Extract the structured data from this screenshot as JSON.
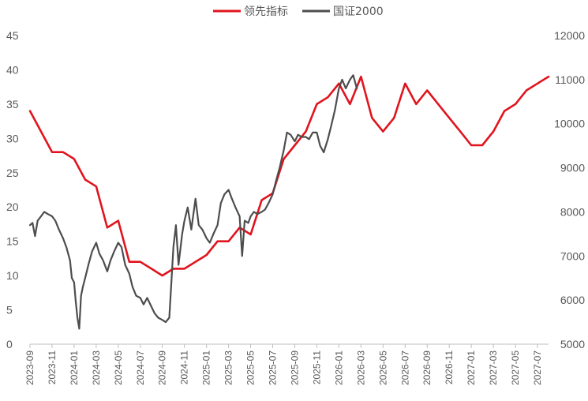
{
  "chart_data": {
    "type": "line",
    "legend": {
      "placement": "top-center",
      "items": [
        {
          "label": "领先指标",
          "color": "#e0141e"
        },
        {
          "label": "国证2000",
          "color": "#4d4d4d"
        }
      ]
    },
    "x_tick_labels": [
      "2023-09",
      "2023-11",
      "2024-01",
      "2024-03",
      "2024-05",
      "2024-07",
      "2024-09",
      "2024-11",
      "2025-01",
      "2025-03",
      "2025-05",
      "2025-07",
      "2025-09",
      "2025-11",
      "2026-01",
      "2026-03",
      "2026-05",
      "2026-07",
      "2026-09",
      "2026-11",
      "2027-01",
      "2027-03",
      "2027-05",
      "2027-07"
    ],
    "x_range": [
      "2023-09",
      "2027-08"
    ],
    "left_axis": {
      "min": 0,
      "max": 45,
      "step": 5,
      "ticks": [
        "0",
        "5",
        "10",
        "15",
        "20",
        "25",
        "30",
        "35",
        "40",
        "45"
      ]
    },
    "right_axis": {
      "min": 5000,
      "max": 12000,
      "step": 1000,
      "ticks": [
        "5000",
        "6000",
        "7000",
        "8000",
        "9000",
        "10000",
        "11000",
        "12000"
      ]
    },
    "grid": false,
    "series": [
      {
        "name": "领先指标",
        "axis": "left",
        "color": "#e0141e",
        "points": [
          [
            "2023-09",
            34
          ],
          [
            "2023-10",
            31
          ],
          [
            "2023-11",
            28
          ],
          [
            "2023-12",
            28
          ],
          [
            "2024-01",
            27
          ],
          [
            "2024-02",
            24
          ],
          [
            "2024-03",
            23
          ],
          [
            "2024-04",
            17
          ],
          [
            "2024-05",
            18
          ],
          [
            "2024-06",
            12
          ],
          [
            "2024-07",
            12
          ],
          [
            "2024-08",
            11
          ],
          [
            "2024-09",
            10
          ],
          [
            "2024-10",
            11
          ],
          [
            "2024-11",
            11
          ],
          [
            "2024-12",
            12
          ],
          [
            "2025-01",
            13
          ],
          [
            "2025-02",
            15
          ],
          [
            "2025-03",
            15
          ],
          [
            "2025-04",
            17
          ],
          [
            "2025-05",
            16
          ],
          [
            "2025-06",
            21
          ],
          [
            "2025-07",
            22
          ],
          [
            "2025-08",
            27
          ],
          [
            "2025-09",
            29
          ],
          [
            "2025-10",
            31
          ],
          [
            "2025-11",
            35
          ],
          [
            "2025-12",
            36
          ],
          [
            "2026-01",
            38
          ],
          [
            "2026-02",
            35
          ],
          [
            "2026-03",
            39
          ],
          [
            "2026-04",
            33
          ],
          [
            "2026-05",
            31
          ],
          [
            "2026-06",
            33
          ],
          [
            "2026-07",
            38
          ],
          [
            "2026-08",
            35
          ],
          [
            "2026-09",
            37
          ],
          [
            "2026-10",
            35
          ],
          [
            "2026-11",
            33
          ],
          [
            "2026-12",
            31
          ],
          [
            "2027-01",
            29
          ],
          [
            "2027-02",
            29
          ],
          [
            "2027-03",
            31
          ],
          [
            "2027-04",
            34
          ],
          [
            "2027-05",
            35
          ],
          [
            "2027-06",
            37
          ],
          [
            "2027-07",
            38
          ],
          [
            "2027-08",
            39
          ]
        ]
      },
      {
        "name": "国证2000",
        "axis": "right",
        "color": "#4d4d4d",
        "points": [
          [
            "2023-09-01",
            7700
          ],
          [
            "2023-09-08",
            7750
          ],
          [
            "2023-09-15",
            7450
          ],
          [
            "2023-09-22",
            7800
          ],
          [
            "2023-10-01",
            7900
          ],
          [
            "2023-10-10",
            8000
          ],
          [
            "2023-10-20",
            7950
          ],
          [
            "2023-11-01",
            7900
          ],
          [
            "2023-11-10",
            7800
          ],
          [
            "2023-11-20",
            7600
          ],
          [
            "2023-12-01",
            7400
          ],
          [
            "2023-12-10",
            7200
          ],
          [
            "2023-12-20",
            6900
          ],
          [
            "2023-12-25",
            6500
          ],
          [
            "2024-01-01",
            6400
          ],
          [
            "2024-01-05",
            6000
          ],
          [
            "2024-01-10",
            5600
          ],
          [
            "2024-01-15",
            5350
          ],
          [
            "2024-01-20",
            6100
          ],
          [
            "2024-01-25",
            6300
          ],
          [
            "2024-02-01",
            6500
          ],
          [
            "2024-02-10",
            6800
          ],
          [
            "2024-02-20",
            7100
          ],
          [
            "2024-03-01",
            7300
          ],
          [
            "2024-03-10",
            7050
          ],
          [
            "2024-03-20",
            6900
          ],
          [
            "2024-04-01",
            6650
          ],
          [
            "2024-04-10",
            6900
          ],
          [
            "2024-04-20",
            7100
          ],
          [
            "2024-05-01",
            7300
          ],
          [
            "2024-05-10",
            7200
          ],
          [
            "2024-05-20",
            6800
          ],
          [
            "2024-06-01",
            6600
          ],
          [
            "2024-06-10",
            6300
          ],
          [
            "2024-06-20",
            6100
          ],
          [
            "2024-07-01",
            6050
          ],
          [
            "2024-07-10",
            5900
          ],
          [
            "2024-07-20",
            6050
          ],
          [
            "2024-08-01",
            5850
          ],
          [
            "2024-08-10",
            5700
          ],
          [
            "2024-08-20",
            5600
          ],
          [
            "2024-09-01",
            5550
          ],
          [
            "2024-09-10",
            5500
          ],
          [
            "2024-09-20",
            5600
          ],
          [
            "2024-09-25",
            6300
          ],
          [
            "2024-10-01",
            7200
          ],
          [
            "2024-10-08",
            7700
          ],
          [
            "2024-10-15",
            6800
          ],
          [
            "2024-10-25",
            7500
          ],
          [
            "2024-11-01",
            7800
          ],
          [
            "2024-11-10",
            8100
          ],
          [
            "2024-11-20",
            7600
          ],
          [
            "2024-12-01",
            8300
          ],
          [
            "2024-12-10",
            7700
          ],
          [
            "2024-12-20",
            7600
          ],
          [
            "2025-01-01",
            7400
          ],
          [
            "2025-01-10",
            7300
          ],
          [
            "2025-01-20",
            7500
          ],
          [
            "2025-02-01",
            7700
          ],
          [
            "2025-02-10",
            8200
          ],
          [
            "2025-02-20",
            8400
          ],
          [
            "2025-03-01",
            8500
          ],
          [
            "2025-03-10",
            8300
          ],
          [
            "2025-03-20",
            8100
          ],
          [
            "2025-04-01",
            7900
          ],
          [
            "2025-04-08",
            7000
          ],
          [
            "2025-04-15",
            7800
          ],
          [
            "2025-04-25",
            7750
          ],
          [
            "2025-05-01",
            7900
          ],
          [
            "2025-05-10",
            8000
          ],
          [
            "2025-05-20",
            7950
          ],
          [
            "2025-06-01",
            8000
          ],
          [
            "2025-06-10",
            8050
          ],
          [
            "2025-06-20",
            8200
          ],
          [
            "2025-07-01",
            8400
          ],
          [
            "2025-07-10",
            8700
          ],
          [
            "2025-07-20",
            9000
          ],
          [
            "2025-08-01",
            9400
          ],
          [
            "2025-08-10",
            9800
          ],
          [
            "2025-08-20",
            9750
          ],
          [
            "2025-09-01",
            9600
          ],
          [
            "2025-09-10",
            9750
          ],
          [
            "2025-09-20",
            9700
          ],
          [
            "2025-10-01",
            9700
          ],
          [
            "2025-10-10",
            9650
          ],
          [
            "2025-10-20",
            9800
          ],
          [
            "2025-11-01",
            9800
          ],
          [
            "2025-11-10",
            9500
          ],
          [
            "2025-11-20",
            9350
          ],
          [
            "2025-12-01",
            9650
          ],
          [
            "2025-12-10",
            9950
          ],
          [
            "2025-12-20",
            10300
          ],
          [
            "2026-01-01",
            10800
          ],
          [
            "2026-01-10",
            11000
          ],
          [
            "2026-01-20",
            10800
          ],
          [
            "2026-02-01",
            11000
          ],
          [
            "2026-02-10",
            11100
          ],
          [
            "2026-02-20",
            10800
          ]
        ]
      }
    ]
  }
}
